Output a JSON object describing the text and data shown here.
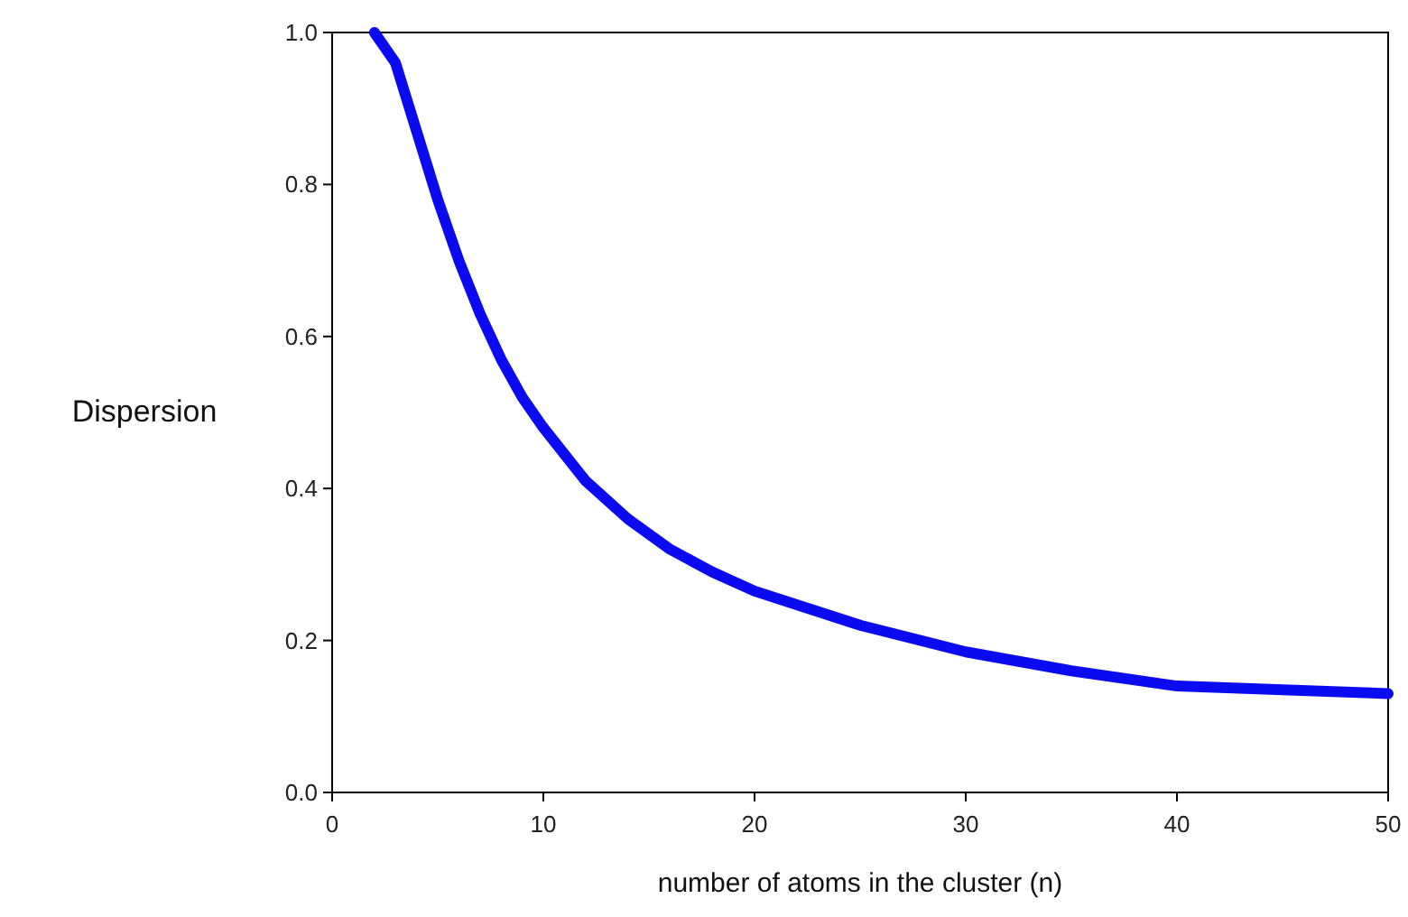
{
  "chart_data": {
    "type": "line",
    "xlabel": "number of atoms in the cluster (n)",
    "ylabel": "Dispersion",
    "series": [
      {
        "color": "#0b0bf2",
        "x": [
          2,
          3,
          4,
          5,
          6,
          7,
          8,
          9,
          10,
          12,
          14,
          16,
          18,
          20,
          25,
          30,
          35,
          40,
          45,
          50
        ],
        "values": [
          1.0,
          0.96,
          0.87,
          0.78,
          0.7,
          0.63,
          0.57,
          0.52,
          0.48,
          0.41,
          0.36,
          0.32,
          0.29,
          0.265,
          0.22,
          0.185,
          0.16,
          0.14,
          0.135,
          0.13
        ]
      }
    ],
    "xlim": [
      0,
      50
    ],
    "xticks": [
      0,
      10,
      20,
      30,
      40,
      50
    ],
    "ylim": [
      0,
      1
    ],
    "yticks": [
      {
        "value": 0,
        "label": "0.0"
      },
      {
        "value": 0.2,
        "label": "0.2"
      },
      {
        "value": 0.4,
        "label": "0.4"
      },
      {
        "value": 0.6,
        "label": "0.6"
      },
      {
        "value": 0.8,
        "label": "0.8"
      },
      {
        "value": 1,
        "label": "1.0"
      }
    ],
    "grid": false,
    "marker": "none",
    "line_style": "solid"
  }
}
